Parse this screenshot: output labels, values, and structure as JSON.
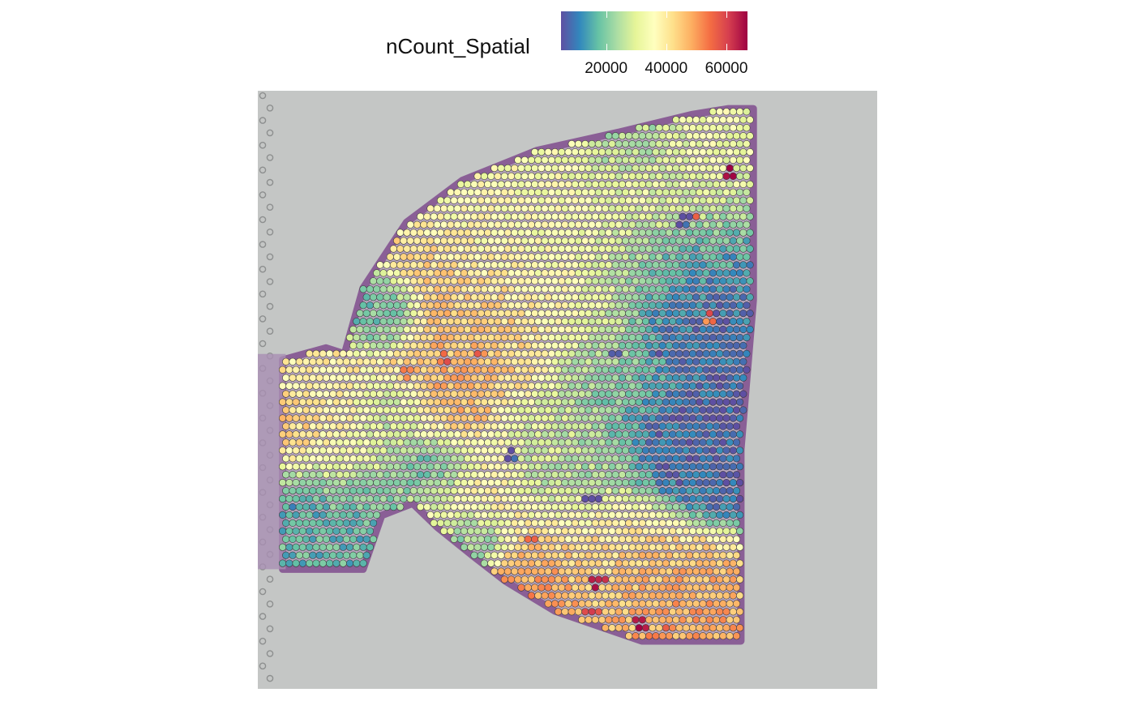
{
  "chart_data": {
    "type": "scatter",
    "subtype": "spatial-spot-map",
    "background": "tissue histology image (H&E), grey slide with purple-stained tissue edge",
    "legend": {
      "title": "nCount_Spatial",
      "position": "top",
      "min": 5000,
      "max": 67000,
      "ticks": [
        20000,
        40000,
        60000
      ],
      "tick_labels": [
        "20000",
        "40000",
        "60000"
      ],
      "palette": [
        "#5E4FA2",
        "#3288BD",
        "#66C2A5",
        "#ABDDA4",
        "#E6F598",
        "#FFFFBF",
        "#FEE08B",
        "#FDAE61",
        "#F46D43",
        "#D53E4F",
        "#9E0142"
      ]
    },
    "spot_grid": {
      "rows": 66,
      "cols": 70,
      "row_step_units": 1,
      "col_step_units": 1
    },
    "coordinate_space": {
      "x_range": [
        0,
        1
      ],
      "y_range": [
        0,
        1
      ]
    },
    "tissue_outline": {
      "description": "normalized polygon of tissue region covered with spots",
      "points": [
        [
          0.04,
          0.45
        ],
        [
          0.11,
          0.43
        ],
        [
          0.14,
          0.44
        ],
        [
          0.17,
          0.33
        ],
        [
          0.24,
          0.22
        ],
        [
          0.33,
          0.15
        ],
        [
          0.45,
          0.1
        ],
        [
          0.58,
          0.07
        ],
        [
          0.7,
          0.04
        ],
        [
          0.76,
          0.03
        ],
        [
          0.8,
          0.03
        ],
        [
          0.8,
          0.35
        ],
        [
          0.78,
          0.6
        ],
        [
          0.78,
          0.92
        ],
        [
          0.62,
          0.92
        ],
        [
          0.48,
          0.87
        ],
        [
          0.4,
          0.82
        ],
        [
          0.35,
          0.78
        ],
        [
          0.29,
          0.73
        ],
        [
          0.25,
          0.69
        ],
        [
          0.2,
          0.71
        ],
        [
          0.17,
          0.8
        ],
        [
          0.04,
          0.8
        ]
      ]
    },
    "value_regions": [
      {
        "cx": 0.1,
        "cy": 0.56,
        "r": 0.09,
        "value": 40000
      },
      {
        "cx": 0.05,
        "cy": 0.57,
        "r": 0.04,
        "value": 48000
      },
      {
        "cx": 0.11,
        "cy": 0.72,
        "r": 0.1,
        "value": 17000
      },
      {
        "cx": 0.07,
        "cy": 0.69,
        "r": 0.03,
        "value": 9000
      },
      {
        "cx": 0.22,
        "cy": 0.54,
        "r": 0.05,
        "value": 22000
      },
      {
        "cx": 0.37,
        "cy": 0.42,
        "r": 0.1,
        "value": 45000
      },
      {
        "cx": 0.3,
        "cy": 0.5,
        "r": 0.07,
        "value": 48000
      },
      {
        "cx": 0.33,
        "cy": 0.68,
        "r": 0.07,
        "value": 42000
      },
      {
        "cx": 0.29,
        "cy": 0.64,
        "r": 0.05,
        "value": 10000
      },
      {
        "cx": 0.5,
        "cy": 0.3,
        "r": 0.12,
        "value": 35000
      },
      {
        "cx": 0.62,
        "cy": 0.18,
        "r": 0.1,
        "value": 33000
      },
      {
        "cx": 0.66,
        "cy": 0.3,
        "r": 0.09,
        "value": 11000
      },
      {
        "cx": 0.69,
        "cy": 0.4,
        "r": 0.06,
        "value": 8000
      },
      {
        "cx": 0.57,
        "cy": 0.48,
        "r": 0.08,
        "value": 20000
      },
      {
        "cx": 0.68,
        "cy": 0.58,
        "r": 0.08,
        "value": 7000
      },
      {
        "cx": 0.72,
        "cy": 0.62,
        "r": 0.05,
        "value": 9000
      },
      {
        "cx": 0.52,
        "cy": 0.62,
        "r": 0.08,
        "value": 24000
      },
      {
        "cx": 0.46,
        "cy": 0.56,
        "r": 0.06,
        "value": 30000
      },
      {
        "cx": 0.56,
        "cy": 0.8,
        "r": 0.1,
        "value": 42000
      },
      {
        "cx": 0.63,
        "cy": 0.86,
        "r": 0.07,
        "value": 50000
      },
      {
        "cx": 0.47,
        "cy": 0.85,
        "r": 0.06,
        "value": 52000
      },
      {
        "cx": 0.34,
        "cy": 0.74,
        "r": 0.04,
        "value": 15000
      },
      {
        "cx": 0.6,
        "cy": 0.1,
        "r": 0.05,
        "value": 20000
      },
      {
        "cx": 0.2,
        "cy": 0.38,
        "r": 0.04,
        "value": 18000
      }
    ],
    "hotspots": [
      {
        "x": 0.76,
        "y": 0.14,
        "value": 67000
      },
      {
        "x": 0.7,
        "y": 0.21,
        "value": 52000
      },
      {
        "x": 0.3,
        "y": 0.45,
        "value": 56000
      },
      {
        "x": 0.36,
        "y": 0.44,
        "value": 54000
      },
      {
        "x": 0.24,
        "y": 0.47,
        "value": 52000
      },
      {
        "x": 0.55,
        "y": 0.82,
        "value": 66000
      },
      {
        "x": 0.62,
        "y": 0.89,
        "value": 64000
      },
      {
        "x": 0.54,
        "y": 0.87,
        "value": 58000
      },
      {
        "x": 0.44,
        "y": 0.75,
        "value": 56000
      },
      {
        "x": 0.66,
        "y": 0.9,
        "value": 56000
      },
      {
        "x": 0.64,
        "y": 0.92,
        "value": 55000
      },
      {
        "x": 0.73,
        "y": 0.38,
        "value": 55000
      }
    ],
    "cold_spots": [
      {
        "x": 0.58,
        "y": 0.44,
        "value": 6000
      },
      {
        "x": 0.64,
        "y": 0.44,
        "value": 6000
      },
      {
        "x": 0.69,
        "y": 0.22,
        "value": 6000
      },
      {
        "x": 0.54,
        "y": 0.68,
        "value": 6000
      },
      {
        "x": 0.41,
        "y": 0.61,
        "value": 7000
      }
    ]
  }
}
